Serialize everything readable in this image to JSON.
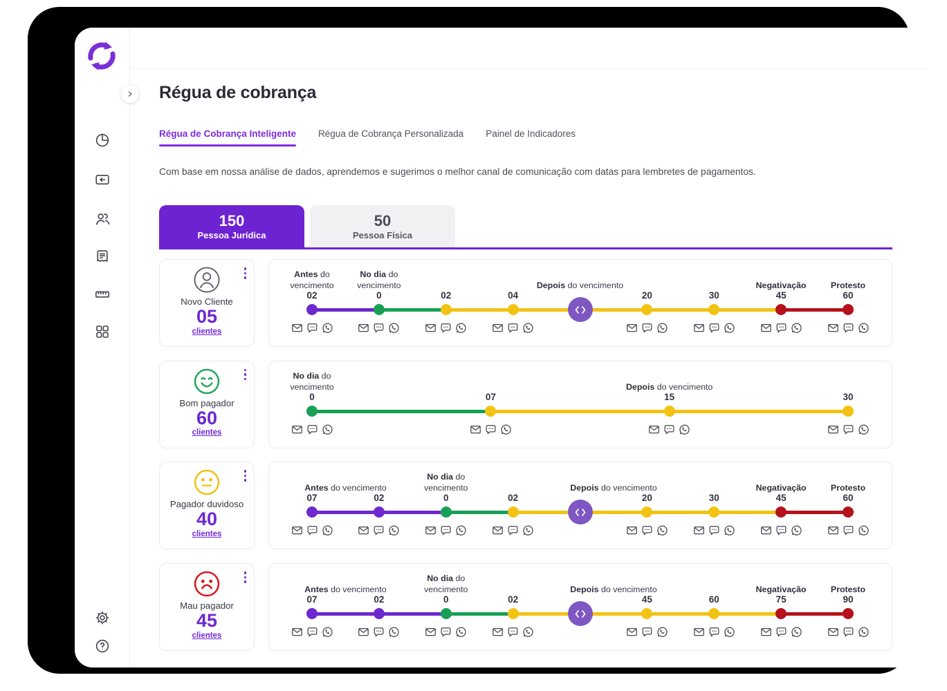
{
  "colors": {
    "purple": "#6d28cf",
    "green": "#17a055",
    "yellow": "#f3c313",
    "red": "#b5121b",
    "expander": "#7e57c2",
    "brand": "#6e23d2"
  },
  "sidebar": {
    "logo": "sync-arrows",
    "collapse": "chevron-right",
    "items": [
      {
        "icon": "pie-chart"
      },
      {
        "icon": "wallet-receive"
      },
      {
        "icon": "users"
      },
      {
        "icon": "receipt"
      },
      {
        "icon": "ruler"
      },
      {
        "icon": "apps-grid"
      }
    ],
    "footer_items": [
      {
        "icon": "settings"
      },
      {
        "icon": "help"
      }
    ]
  },
  "header": {
    "title": "Régua de cobrança"
  },
  "tabs": [
    {
      "label": "Régua de Cobrança Inteligente",
      "active": true
    },
    {
      "label": "Régua de Cobrança Personalizada",
      "active": false
    },
    {
      "label": "Painel de Indicadores",
      "active": false
    }
  ],
  "description": "Com base em nossa análise de dados, aprendemos e sugerimos o melhor canal de comunicação com datas para lembretes de pagamentos.",
  "segments": [
    {
      "count": "150",
      "label": "Pessoa Jurídica",
      "active": true
    },
    {
      "count": "50",
      "label": "Pessoa Física",
      "active": false
    }
  ],
  "channels": [
    "email",
    "sms",
    "whatsapp"
  ],
  "rows": [
    {
      "name": "Novo Cliente",
      "count": "05",
      "link": "clientes",
      "icon": "person",
      "points": [
        {
          "day": "02",
          "dot": "purple",
          "seg": "purple",
          "label": "**Antes** do\nvencimento"
        },
        {
          "day": "0",
          "dot": "green",
          "seg": "green",
          "label": "**No dia** do\nvencimento"
        },
        {
          "day": "02",
          "dot": "yellow",
          "seg": "yellow"
        },
        {
          "day": "04",
          "dot": "yellow",
          "seg": "yellow"
        },
        {
          "expander": true,
          "seg": "yellow",
          "label": "**Depois** do vencimento",
          "span": 1
        },
        {
          "day": "20",
          "dot": "yellow",
          "seg": "yellow"
        },
        {
          "day": "30",
          "dot": "yellow",
          "seg": "yellow"
        },
        {
          "day": "45",
          "dot": "red",
          "seg": "red",
          "label": "**Negativação**"
        },
        {
          "day": "60",
          "dot": "red",
          "label": "**Protesto**"
        }
      ]
    },
    {
      "name": "Bom pagador",
      "count": "60",
      "link": "clientes",
      "icon": "happy",
      "points": [
        {
          "day": "0",
          "dot": "green",
          "seg": "green",
          "label": "**No dia** do\nvencimento"
        },
        {
          "day": "07",
          "dot": "yellow",
          "seg": "yellow"
        },
        {
          "day": "15",
          "dot": "yellow",
          "seg": "yellow",
          "label": "**Depois** do vencimento"
        },
        {
          "day": "30",
          "dot": "yellow"
        }
      ]
    },
    {
      "name": "Pagador duvidoso",
      "count": "40",
      "link": "clientes",
      "icon": "neutral",
      "points": [
        {
          "day": "07",
          "dot": "purple",
          "seg": "purple",
          "label": "**Antes** do vencimento",
          "span": 2
        },
        {
          "day": "02",
          "dot": "purple",
          "seg": "purple"
        },
        {
          "day": "0",
          "dot": "green",
          "seg": "green",
          "label": "**No dia** do\nvencimento"
        },
        {
          "day": "02",
          "dot": "yellow",
          "seg": "yellow"
        },
        {
          "expander": true,
          "seg": "yellow",
          "label": "**Depois** do vencimento",
          "span": 2
        },
        {
          "day": "20",
          "dot": "yellow",
          "seg": "yellow"
        },
        {
          "day": "30",
          "dot": "yellow",
          "seg": "yellow"
        },
        {
          "day": "45",
          "dot": "red",
          "seg": "red",
          "label": "**Negativação**"
        },
        {
          "day": "60",
          "dot": "red",
          "label": "**Protesto**"
        }
      ]
    },
    {
      "name": "Mau pagador",
      "count": "45",
      "link": "clientes",
      "icon": "sad",
      "points": [
        {
          "day": "07",
          "dot": "purple",
          "seg": "purple",
          "label": "**Antes** do vencimento",
          "span": 2
        },
        {
          "day": "02",
          "dot": "purple",
          "seg": "purple"
        },
        {
          "day": "0",
          "dot": "green",
          "seg": "green",
          "label": "**No dia** do\nvencimento"
        },
        {
          "day": "02",
          "dot": "yellow",
          "seg": "yellow"
        },
        {
          "expander": true,
          "seg": "yellow",
          "label": "**Depois** do vencimento",
          "span": 2
        },
        {
          "day": "45",
          "dot": "yellow",
          "seg": "yellow"
        },
        {
          "day": "60",
          "dot": "yellow",
          "seg": "yellow"
        },
        {
          "day": "75",
          "dot": "red",
          "seg": "red",
          "label": "**Negativação**"
        },
        {
          "day": "90",
          "dot": "red",
          "label": "**Protesto**"
        }
      ]
    }
  ]
}
